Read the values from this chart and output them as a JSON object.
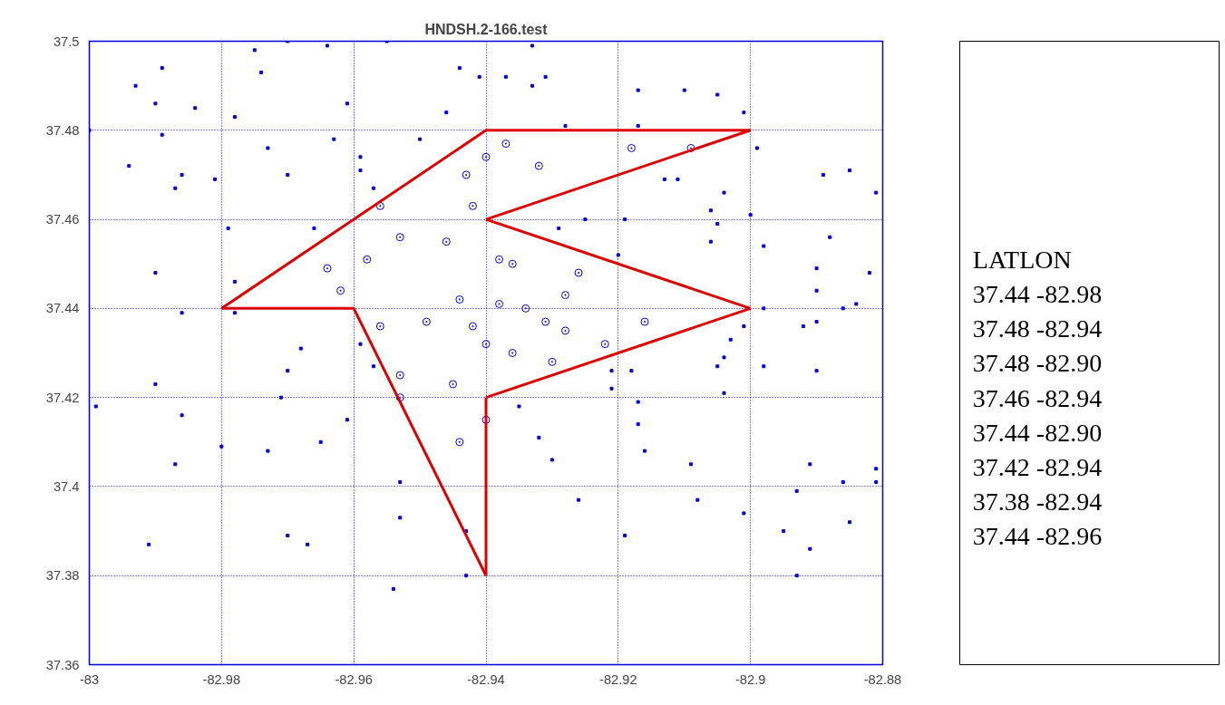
{
  "chart_data": [
    {
      "type": "scatter",
      "title": "HNDSH.2-166.test",
      "xlim": [
        -83,
        -82.88
      ],
      "ylim": [
        37.36,
        37.5
      ],
      "xticks": [
        -83,
        -82.98,
        -82.96,
        -82.94,
        -82.92,
        -82.9,
        -82.88
      ],
      "yticks": [
        37.36,
        37.38,
        37.4,
        37.42,
        37.44,
        37.46,
        37.48,
        37.5
      ],
      "grid": true,
      "marker": "square",
      "series": [
        {
          "color": "#0000dd",
          "x": [
            -83.0,
            -82.993,
            -82.994,
            -82.99,
            -82.989,
            -82.989,
            -82.984,
            -82.987,
            -82.986,
            -82.981,
            -82.975,
            -82.974,
            -82.978,
            -82.97,
            -82.964,
            -82.955,
            -82.973,
            -82.97,
            -82.963,
            -82.961,
            -82.959,
            -82.959,
            -82.957,
            -82.95,
            -82.946,
            -82.944,
            -82.941,
            -82.937,
            -82.933,
            -82.931,
            -82.933,
            -82.928,
            -82.979,
            -82.978,
            -82.99,
            -82.986,
            -82.978,
            -82.966,
            -82.959,
            -82.957,
            -82.968,
            -82.97,
            -82.971,
            -82.973,
            -82.98,
            -82.987,
            -82.99,
            -82.986,
            -82.999,
            -82.961,
            -82.965,
            -82.953,
            -82.953,
            -82.954,
            -82.97,
            -82.967,
            -82.991,
            -82.943,
            -82.943,
            -82.935,
            -82.932,
            -82.93,
            -82.925,
            -82.929,
            -82.917,
            -82.917,
            -82.919,
            -82.92,
            -82.918,
            -82.917,
            -82.917,
            -82.921,
            -82.921,
            -82.926,
            -82.919,
            -82.916,
            -82.913,
            -82.911,
            -82.906,
            -82.906,
            -82.905,
            -82.91,
            -82.905,
            -82.901,
            -82.899,
            -82.9,
            -82.904,
            -82.898,
            -82.903,
            -82.904,
            -82.905,
            -82.904,
            -82.901,
            -82.898,
            -82.898,
            -82.901,
            -82.908,
            -82.909,
            -82.89,
            -82.89,
            -82.89,
            -82.89,
            -82.888,
            -82.889,
            -82.885,
            -82.881,
            -82.882,
            -82.886,
            -82.884,
            -82.892,
            -82.891,
            -82.893,
            -82.891,
            -82.893,
            -82.886,
            -82.881,
            -82.881,
            -82.885,
            -82.895
          ],
          "values": [
            37.48,
            37.49,
            37.472,
            37.486,
            37.494,
            37.479,
            37.485,
            37.467,
            37.47,
            37.469,
            37.498,
            37.493,
            37.483,
            37.5,
            37.499,
            37.5,
            37.476,
            37.47,
            37.478,
            37.486,
            37.474,
            37.471,
            37.467,
            37.478,
            37.484,
            37.494,
            37.492,
            37.492,
            37.49,
            37.492,
            37.499,
            37.481,
            37.458,
            37.446,
            37.448,
            37.439,
            37.439,
            37.458,
            37.432,
            37.427,
            37.431,
            37.426,
            37.42,
            37.408,
            37.409,
            37.405,
            37.423,
            37.416,
            37.418,
            37.415,
            37.41,
            37.401,
            37.393,
            37.377,
            37.389,
            37.387,
            37.387,
            37.39,
            37.38,
            37.418,
            37.411,
            37.406,
            37.46,
            37.458,
            37.489,
            37.481,
            37.46,
            37.452,
            37.426,
            37.419,
            37.414,
            37.422,
            37.426,
            37.397,
            37.389,
            37.408,
            37.469,
            37.469,
            37.462,
            37.455,
            37.459,
            37.489,
            37.488,
            37.484,
            37.476,
            37.461,
            37.466,
            37.454,
            37.433,
            37.429,
            37.427,
            37.421,
            37.436,
            37.44,
            37.427,
            37.394,
            37.397,
            37.405,
            37.426,
            37.437,
            37.444,
            37.449,
            37.456,
            37.47,
            37.471,
            37.466,
            37.448,
            37.44,
            37.441,
            37.436,
            37.405,
            37.399,
            37.386,
            37.38,
            37.401,
            37.401,
            37.404,
            37.392,
            37.39
          ]
        },
        {
          "color": "#0000dd",
          "marker": "circle",
          "x": [
            -82.94,
            -82.937,
            -82.932,
            -82.943,
            -82.942,
            -82.918,
            -82.909,
            -82.956,
            -82.953,
            -82.946,
            -82.958,
            -82.964,
            -82.962,
            -82.938,
            -82.936,
            -82.926,
            -82.928,
            -82.944,
            -82.938,
            -82.934,
            -82.931,
            -82.949,
            -82.956,
            -82.942,
            -82.94,
            -82.936,
            -82.928,
            -82.922,
            -82.93,
            -82.916,
            -82.953,
            -82.953,
            -82.945,
            -82.944,
            -82.94
          ],
          "values": [
            37.474,
            37.477,
            37.472,
            37.47,
            37.463,
            37.476,
            37.476,
            37.463,
            37.456,
            37.455,
            37.451,
            37.449,
            37.444,
            37.451,
            37.45,
            37.448,
            37.443,
            37.442,
            37.441,
            37.44,
            37.437,
            37.437,
            37.436,
            37.436,
            37.432,
            37.43,
            37.435,
            37.432,
            37.428,
            37.437,
            37.425,
            37.42,
            37.423,
            37.41,
            37.415
          ]
        },
        {
          "type": "line",
          "marker": "none",
          "color": "#dd0000",
          "x": [
            -82.98,
            -82.94,
            -82.9
          ],
          "values": [
            37.44,
            37.48,
            37.48
          ]
        },
        {
          "type": "line",
          "marker": "none",
          "color": "#dd0000",
          "x": [
            -82.9,
            -82.94
          ],
          "values": [
            37.48,
            37.46
          ]
        },
        {
          "type": "line",
          "marker": "none",
          "color": "#dd0000",
          "x": [
            -82.94,
            -82.9
          ],
          "values": [
            37.46,
            37.44
          ]
        },
        {
          "type": "line",
          "marker": "none",
          "color": "#dd0000",
          "x": [
            -82.9,
            -82.94
          ],
          "values": [
            37.44,
            37.42
          ]
        },
        {
          "type": "line",
          "marker": "none",
          "color": "#dd0000",
          "x": [
            -82.94,
            -82.94
          ],
          "values": [
            37.42,
            37.38
          ]
        },
        {
          "type": "line",
          "marker": "none",
          "color": "#dd0000",
          "x": [
            -82.94,
            -82.96,
            -82.98
          ],
          "values": [
            37.38,
            37.44,
            37.44
          ]
        }
      ]
    },
    {
      "type": "other",
      "title": "LATLON",
      "annotations": [
        "37.44 -82.98",
        "37.48 -82.94",
        "37.48 -82.90",
        "37.46 -82.94",
        "37.44 -82.90",
        "37.42 -82.94",
        "37.38 -82.94",
        "37.44 -82.96"
      ]
    }
  ]
}
